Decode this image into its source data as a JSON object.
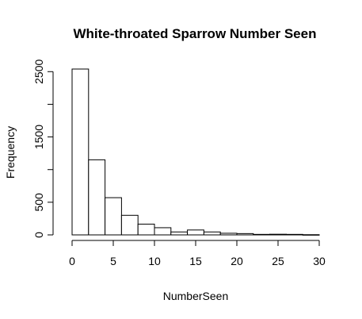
{
  "chart_data": {
    "type": "bar",
    "title": "White-throated Sparrow Number Seen",
    "xlabel": "NumberSeen",
    "ylabel": "Frequency",
    "bins": [
      {
        "x0": 0,
        "x1": 2,
        "count": 2540
      },
      {
        "x0": 2,
        "x1": 4,
        "count": 1150
      },
      {
        "x0": 4,
        "x1": 6,
        "count": 570
      },
      {
        "x0": 6,
        "x1": 8,
        "count": 300
      },
      {
        "x0": 8,
        "x1": 10,
        "count": 165
      },
      {
        "x0": 10,
        "x1": 12,
        "count": 110
      },
      {
        "x0": 12,
        "x1": 14,
        "count": 45
      },
      {
        "x0": 14,
        "x1": 16,
        "count": 75
      },
      {
        "x0": 16,
        "x1": 18,
        "count": 45
      },
      {
        "x0": 18,
        "x1": 20,
        "count": 25
      },
      {
        "x0": 20,
        "x1": 22,
        "count": 20
      },
      {
        "x0": 22,
        "x1": 24,
        "count": 8
      },
      {
        "x0": 24,
        "x1": 26,
        "count": 10
      },
      {
        "x0": 26,
        "x1": 28,
        "count": 8
      },
      {
        "x0": 28,
        "x1": 30,
        "count": 3
      }
    ],
    "xticks": [
      0,
      5,
      10,
      15,
      20,
      25,
      30
    ],
    "yticks": [
      0,
      500,
      1000,
      1500,
      2000,
      2500
    ],
    "ytick_labels_shown": [
      "0",
      "500",
      "1500",
      "2500"
    ],
    "xlim": [
      0,
      30
    ],
    "ylim": [
      0,
      2540
    ],
    "grid": false,
    "legend": "none"
  }
}
